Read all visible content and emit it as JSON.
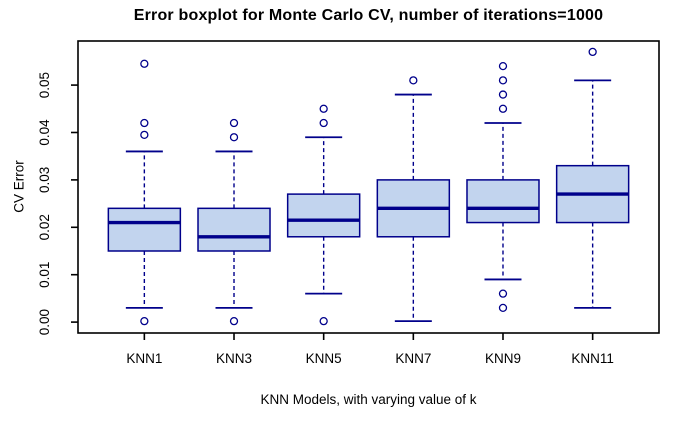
{
  "chart_data": {
    "type": "boxplot",
    "title": "Error boxplot for Monte Carlo CV, number of iterations=1000",
    "xlabel": "KNN Models, with varying value of k",
    "ylabel": "CV Error",
    "categories": [
      "KNN1",
      "KNN3",
      "KNN5",
      "KNN7",
      "KNN9",
      "KNN11"
    ],
    "y_ticks": [
      0.0,
      0.01,
      0.02,
      0.03,
      0.04,
      0.05
    ],
    "ylim": [
      -0.0023,
      0.0593
    ],
    "grid": false,
    "legend": null,
    "series": [
      {
        "name": "KNN1",
        "whisker_low": 0.003,
        "q1": 0.015,
        "median": 0.021,
        "q3": 0.024,
        "whisker_high": 0.036,
        "outliers": [
          0.0545,
          0.042,
          0.0395,
          0.0002
        ]
      },
      {
        "name": "KNN3",
        "whisker_low": 0.003,
        "q1": 0.015,
        "median": 0.018,
        "q3": 0.024,
        "whisker_high": 0.036,
        "outliers": [
          0.042,
          0.039,
          0.0002
        ]
      },
      {
        "name": "KNN5",
        "whisker_low": 0.006,
        "q1": 0.018,
        "median": 0.0215,
        "q3": 0.027,
        "whisker_high": 0.039,
        "outliers": [
          0.045,
          0.042,
          0.0002
        ]
      },
      {
        "name": "KNN7",
        "whisker_low": 0.0002,
        "q1": 0.018,
        "median": 0.024,
        "q3": 0.03,
        "whisker_high": 0.048,
        "outliers": [
          0.051
        ]
      },
      {
        "name": "KNN9",
        "whisker_low": 0.009,
        "q1": 0.021,
        "median": 0.024,
        "q3": 0.03,
        "whisker_high": 0.042,
        "outliers": [
          0.054,
          0.051,
          0.048,
          0.045,
          0.006,
          0.003
        ]
      },
      {
        "name": "KNN11",
        "whisker_low": 0.003,
        "q1": 0.021,
        "median": 0.027,
        "q3": 0.033,
        "whisker_high": 0.051,
        "outliers": [
          0.057
        ]
      }
    ],
    "colors": {
      "box_fill": "#c2d4ee",
      "box_line": "#00008b",
      "axis": "#000000",
      "background": "#ffffff"
    }
  }
}
